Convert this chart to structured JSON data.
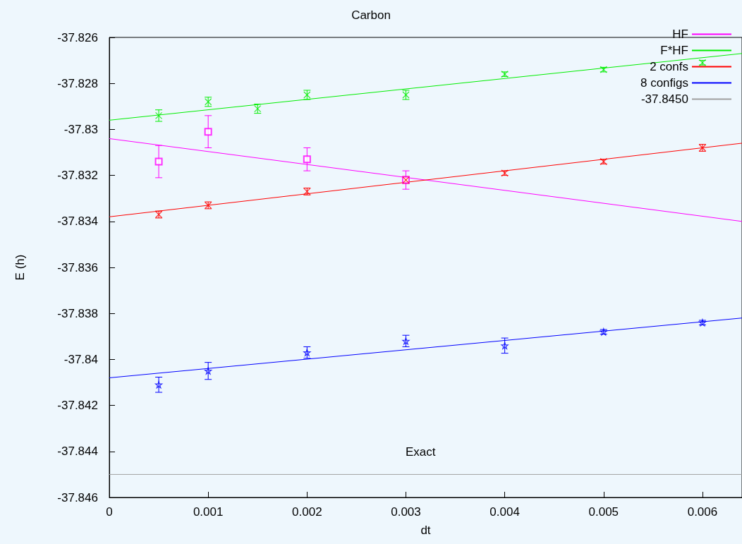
{
  "chart_data": {
    "type": "scatter",
    "title": "Carbon",
    "xlabel": "dt",
    "ylabel": "E (h)",
    "xlim": [
      0,
      0.0064
    ],
    "xticks": [
      0,
      0.001,
      0.002,
      0.003,
      0.004,
      0.005,
      0.006
    ],
    "ylim": [
      -37.846,
      -37.826
    ],
    "yticks": [
      -37.846,
      -37.844,
      -37.842,
      -37.84,
      -37.838,
      -37.836,
      -37.834,
      -37.832,
      -37.83,
      -37.828,
      -37.826
    ],
    "grid": false,
    "legend": "top right",
    "annotations": [
      "Exact"
    ],
    "series": [
      {
        "name": "HF",
        "type": "line",
        "color": "#ff00ff",
        "marker": "none",
        "x": [
          0,
          0.0064
        ],
        "values": [
          -37.8304,
          -37.834
        ]
      },
      {
        "name": "F*HF",
        "type": "line",
        "color": "#00ee00",
        "marker": "none",
        "x": [
          0,
          0.0064
        ],
        "values": [
          -37.8296,
          -37.8267
        ]
      },
      {
        "name": "2 confs",
        "type": "line",
        "color": "#ff0000",
        "marker": "none",
        "x": [
          0,
          0.0064
        ],
        "values": [
          -37.8338,
          -37.8306
        ]
      },
      {
        "name": "8 configs",
        "type": "line",
        "color": "#0000ff",
        "marker": "none",
        "x": [
          0,
          0.0064
        ],
        "values": [
          -37.8408,
          -37.8382
        ]
      },
      {
        "name": "-37.8450",
        "type": "line",
        "color": "#a0a0a0",
        "marker": "none",
        "x": [
          0,
          0.0064
        ],
        "values": [
          -37.845,
          -37.845
        ]
      },
      {
        "type": "scatter",
        "color": "#ff00ff",
        "marker": "square",
        "x": [
          0.0005,
          0.001,
          0.002,
          0.003
        ],
        "values": [
          -37.8314,
          -37.8301,
          -37.8313,
          -37.8322
        ],
        "errors": [
          0.0007,
          0.0007,
          0.0005,
          0.0004
        ]
      },
      {
        "type": "scatter",
        "color": "#00ee00",
        "marker": "cross",
        "x": [
          0.0005,
          0.001,
          0.0015,
          0.002,
          0.003,
          0.004,
          0.005,
          0.006
        ],
        "values": [
          -37.8294,
          -37.8288,
          -37.8291,
          -37.8285,
          -37.8285,
          -37.8276,
          -37.8274,
          -37.8271
        ],
        "errors": [
          0.00025,
          0.0002,
          0.0002,
          0.0002,
          0.0002,
          0.0001,
          0.0001,
          0.0001
        ]
      },
      {
        "type": "scatter",
        "color": "#ff0000",
        "marker": "cross",
        "x": [
          0.0005,
          0.001,
          0.002,
          0.003,
          0.004,
          0.005,
          0.006
        ],
        "values": [
          -37.8337,
          -37.8333,
          -37.8327,
          -37.8322,
          -37.8319,
          -37.8314,
          -37.8308
        ],
        "errors": [
          0.00015,
          0.00015,
          0.00015,
          0.00015,
          0.0001,
          0.0001,
          0.00015
        ]
      },
      {
        "type": "scatter",
        "color": "#0000ff",
        "marker": "star",
        "x": [
          0.0005,
          0.001,
          0.002,
          0.003,
          0.004,
          0.005,
          0.006
        ],
        "values": [
          -37.8411,
          -37.8405,
          -37.8397,
          -37.8392,
          -37.8394,
          -37.8388,
          -37.8384
        ],
        "errors": [
          0.00033,
          0.00037,
          0.00025,
          0.00025,
          0.00033,
          0.0001,
          0.0001
        ]
      }
    ]
  }
}
